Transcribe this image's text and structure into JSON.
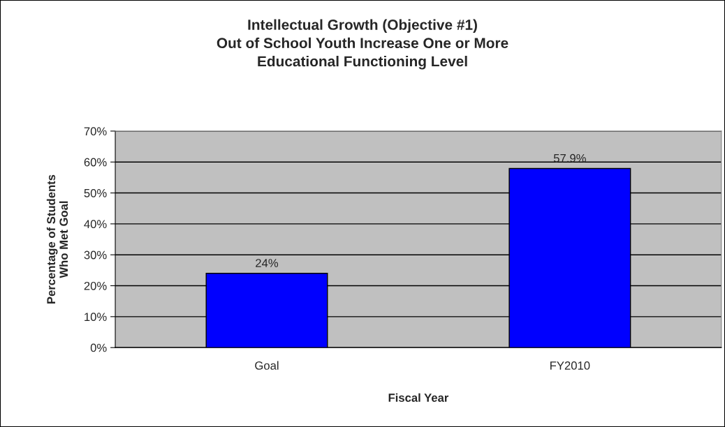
{
  "chart_data": {
    "type": "bar",
    "title": "Intellectual Growth (Objective #1)\nOut of School Youth Increase One or More\nEducational Functioning Level",
    "xlabel": "Fiscal Year",
    "ylabel": "Percentage of Students\nWho Met Goal",
    "categories": [
      "Goal",
      "FY2010"
    ],
    "values": [
      24,
      57.9
    ],
    "value_labels": [
      "24%",
      "57.9%"
    ],
    "color": "#0000ff",
    "ylim": [
      0,
      70
    ],
    "yticks": [
      {
        "value": 0,
        "label": "0%"
      },
      {
        "value": 10,
        "label": "10%"
      },
      {
        "value": 20,
        "label": "20%"
      },
      {
        "value": 30,
        "label": "30%"
      },
      {
        "value": 40,
        "label": "40%"
      },
      {
        "value": 50,
        "label": "50%"
      },
      {
        "value": 60,
        "label": "60%"
      },
      {
        "value": 70,
        "label": "70%"
      }
    ],
    "grid": "y",
    "legend": false
  }
}
